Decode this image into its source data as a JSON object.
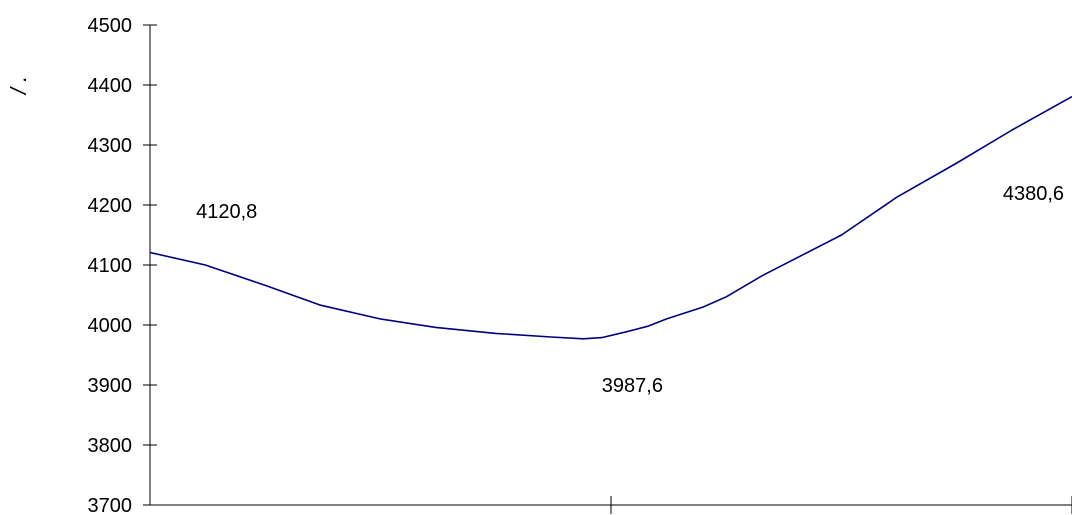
{
  "chart_data": {
    "type": "line",
    "title": "",
    "xlabel": "",
    "ylabel": "/ .",
    "ylim": [
      3700,
      4500
    ],
    "y_ticks": [
      3700,
      3800,
      3900,
      4000,
      4100,
      4200,
      4300,
      4400,
      4500
    ],
    "y_tick_labels": [
      "3700",
      "3800",
      "3900",
      "4000",
      "4100",
      "4200",
      "4300",
      "4400",
      "4500"
    ],
    "xlim": [
      0,
      2
    ],
    "x_ticks": [
      0,
      1,
      2
    ],
    "grid": false,
    "series": [
      {
        "color": "#000080",
        "x": [
          0,
          0.12,
          0.25,
          0.37,
          0.5,
          0.62,
          0.75,
          0.87,
          0.94,
          0.98,
          1.03,
          1.08,
          1.12,
          1.2,
          1.25,
          1.33,
          1.5,
          1.62,
          1.75,
          1.87,
          2.0
        ],
        "y": [
          4120.8,
          4100,
          4066,
          4033,
          4010,
          3996,
          3986,
          3980,
          3977,
          3979,
          3988,
          3998,
          4010,
          4030,
          4047,
          4083,
          4150,
          4213,
          4270,
          4325,
          4380.6
        ]
      }
    ],
    "annotations": [
      {
        "text": "4120,8",
        "x": 0.1,
        "y": 4190
      },
      {
        "text": "3987,6",
        "x": 0.98,
        "y": 3900
      },
      {
        "text": "4380,6",
        "x": 1.85,
        "y": 4220
      }
    ]
  }
}
